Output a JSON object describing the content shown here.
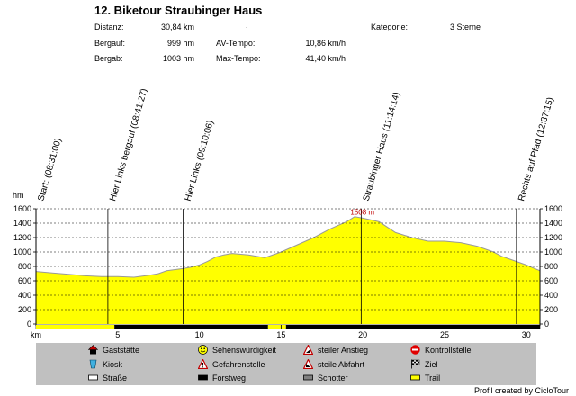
{
  "header": {
    "title": "12. Biketour Straubinger Haus",
    "stats": [
      {
        "label": "Distanz:",
        "value": "30,84 km"
      },
      {
        "label": "Bergauf:",
        "value": "999 hm"
      },
      {
        "label": "Bergab:",
        "value": "1003 hm"
      }
    ],
    "stats2": [
      {
        "label": "AV-Tempo:",
        "value": "10,86 km/h"
      },
      {
        "label": "Max-Tempo:",
        "value": "41,40 km/h"
      }
    ],
    "category_label": "Kategorie:",
    "category_value": "3 Sterne",
    "dot": "."
  },
  "chart_data": {
    "type": "area",
    "xlabel": "km",
    "ylabel": "hm",
    "xlim": [
      0,
      30.84
    ],
    "ylim": [
      0,
      1600
    ],
    "x_ticks": [
      5,
      10,
      15,
      20,
      25,
      30
    ],
    "y_ticks": [
      0,
      200,
      400,
      600,
      800,
      1000,
      1200,
      1400,
      1600
    ],
    "grid": true,
    "fill_color": "#ffff00",
    "series": [
      {
        "x": [
          0,
          1,
          2,
          3,
          4,
          5,
          6,
          7,
          7.5,
          8,
          9,
          9.5,
          10,
          10.5,
          11,
          11.5,
          12,
          13,
          13.5,
          14,
          15,
          16,
          17,
          18,
          19,
          19.5,
          20,
          21,
          22,
          23,
          24,
          25,
          26,
          27,
          28,
          28.5,
          29,
          30,
          30.84
        ],
        "y": [
          730,
          710,
          690,
          670,
          660,
          660,
          650,
          680,
          700,
          740,
          770,
          790,
          820,
          870,
          930,
          960,
          980,
          960,
          940,
          920,
          1000,
          1100,
          1200,
          1320,
          1420,
          1490,
          1470,
          1420,
          1270,
          1200,
          1150,
          1150,
          1130,
          1080,
          1000,
          940,
          900,
          820,
          740
        ]
      }
    ],
    "annotations": [
      {
        "x": 0,
        "text": "Start: (08:31:00)"
      },
      {
        "x": 4.4,
        "text": "Hier Links bergauf (08:41:27)"
      },
      {
        "x": 9.0,
        "text": "Hier Links  (09:10:06)"
      },
      {
        "x": 19.9,
        "text": "Straubinger Haus (11:14:14)"
      },
      {
        "x": 29.4,
        "text": "Rechts auf Pfad (12:37:15)"
      }
    ],
    "peak_label": {
      "x": 19.9,
      "y": 1508,
      "text": "1508 m"
    },
    "surface_segments": [
      {
        "from": 0,
        "to": 4.8,
        "type": "Trail"
      },
      {
        "from": 4.8,
        "to": 14.2,
        "type": "Forstweg"
      },
      {
        "from": 14.2,
        "to": 15.3,
        "type": "Trail"
      },
      {
        "from": 15.3,
        "to": 30.84,
        "type": "Forstweg"
      }
    ],
    "surface_colors": {
      "Trail": "#ffff00",
      "Forstweg": "#000000",
      "Straße": "#ffffff",
      "Schotter": "#808080"
    }
  },
  "legend": {
    "items": [
      {
        "label": "Gaststätte",
        "icon": "house-icon"
      },
      {
        "label": "Sehenswürdigkeit",
        "icon": "smiley-icon"
      },
      {
        "label": "steiler Anstieg",
        "icon": "steep-up-icon"
      },
      {
        "label": "Kontrollstelle",
        "icon": "stop-icon"
      },
      {
        "label": "Kiosk",
        "icon": "kiosk-icon"
      },
      {
        "label": "Gefahrenstelle",
        "icon": "warning-icon"
      },
      {
        "label": "steile Abfahrt",
        "icon": "steep-down-icon"
      },
      {
        "label": "Ziel",
        "icon": "finish-flag-icon"
      },
      {
        "label": "Straße",
        "icon": "street-swatch-icon",
        "color": "#ffffff"
      },
      {
        "label": "Forstweg",
        "icon": "forest-road-swatch-icon",
        "color": "#000000"
      },
      {
        "label": "Schotter",
        "icon": "gravel-swatch-icon",
        "color": "#808080"
      },
      {
        "label": "Trail",
        "icon": "trail-swatch-icon",
        "color": "#ffff00"
      }
    ]
  },
  "footer": {
    "credit": "Profil created by CicloTour"
  }
}
